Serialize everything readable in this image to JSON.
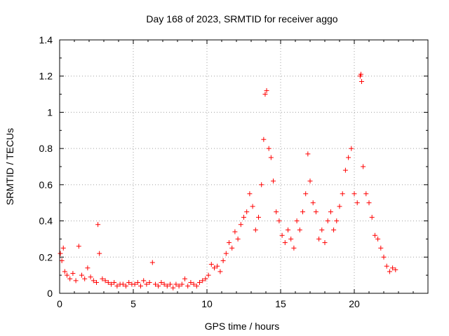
{
  "chart_data": {
    "type": "scatter",
    "title": "Day 168 of 2023, SRMTID for receiver aggo",
    "xlabel": "GPS time / hours",
    "ylabel": "SRMTID / TECUs",
    "xlim": [
      0,
      25
    ],
    "ylim": [
      0,
      1.4
    ],
    "xticks": [
      "0",
      "5",
      "10",
      "15",
      "20"
    ],
    "xtick_values": [
      0,
      5,
      10,
      15,
      20
    ],
    "yticks": [
      "0",
      "0.2",
      "0.4",
      "0.6",
      "0.8",
      "1",
      "1.2",
      "1.4"
    ],
    "ytick_values": [
      0,
      0.2,
      0.4,
      0.6,
      0.8,
      1.0,
      1.2,
      1.4
    ],
    "grid": true,
    "marker": "plus",
    "series": [
      {
        "name": "SRMTID",
        "color": "#ff0000",
        "x": [
          0.05,
          0.15,
          0.25,
          0.35,
          0.5,
          0.7,
          0.9,
          1.1,
          1.3,
          1.5,
          1.7,
          1.9,
          2.1,
          2.3,
          2.5,
          2.6,
          2.7,
          2.9,
          3.1,
          3.3,
          3.5,
          3.7,
          3.9,
          4.1,
          4.3,
          4.5,
          4.7,
          4.9,
          5.1,
          5.3,
          5.5,
          5.7,
          5.9,
          6.1,
          6.3,
          6.5,
          6.7,
          6.9,
          7.1,
          7.3,
          7.5,
          7.7,
          7.9,
          8.1,
          8.3,
          8.5,
          8.7,
          8.9,
          9.1,
          9.3,
          9.5,
          9.7,
          9.9,
          10.1,
          10.3,
          10.5,
          10.7,
          10.9,
          11.1,
          11.3,
          11.5,
          11.7,
          11.9,
          12.1,
          12.3,
          12.5,
          12.7,
          12.9,
          13.1,
          13.3,
          13.5,
          13.7,
          13.85,
          13.95,
          14.05,
          14.2,
          14.35,
          14.5,
          14.7,
          14.9,
          15.1,
          15.3,
          15.5,
          15.7,
          15.9,
          16.1,
          16.3,
          16.5,
          16.7,
          16.85,
          17.0,
          17.2,
          17.4,
          17.6,
          17.8,
          18.0,
          18.2,
          18.4,
          18.6,
          18.8,
          19.0,
          19.2,
          19.4,
          19.6,
          19.8,
          20.0,
          20.2,
          20.4,
          20.45,
          20.5,
          20.6,
          20.8,
          21.0,
          21.2,
          21.4,
          21.6,
          21.8,
          22.0,
          22.2,
          22.4,
          22.6,
          22.8
        ],
        "y": [
          0.22,
          0.18,
          0.25,
          0.12,
          0.1,
          0.08,
          0.11,
          0.07,
          0.26,
          0.1,
          0.08,
          0.14,
          0.09,
          0.07,
          0.06,
          0.38,
          0.22,
          0.08,
          0.07,
          0.06,
          0.05,
          0.06,
          0.04,
          0.05,
          0.05,
          0.04,
          0.06,
          0.05,
          0.05,
          0.06,
          0.04,
          0.07,
          0.05,
          0.06,
          0.17,
          0.05,
          0.04,
          0.06,
          0.05,
          0.04,
          0.05,
          0.03,
          0.05,
          0.04,
          0.05,
          0.08,
          0.04,
          0.06,
          0.05,
          0.04,
          0.06,
          0.07,
          0.08,
          0.1,
          0.16,
          0.14,
          0.15,
          0.12,
          0.18,
          0.22,
          0.28,
          0.25,
          0.34,
          0.3,
          0.38,
          0.42,
          0.45,
          0.55,
          0.48,
          0.35,
          0.42,
          0.6,
          0.85,
          1.1,
          1.12,
          0.8,
          0.75,
          0.62,
          0.45,
          0.4,
          0.32,
          0.28,
          0.35,
          0.3,
          0.25,
          0.4,
          0.35,
          0.45,
          0.55,
          0.77,
          0.62,
          0.5,
          0.45,
          0.3,
          0.35,
          0.28,
          0.4,
          0.45,
          0.35,
          0.4,
          0.48,
          0.55,
          0.68,
          0.75,
          0.8,
          0.55,
          0.5,
          1.2,
          1.21,
          1.17,
          0.7,
          0.55,
          0.5,
          0.42,
          0.32,
          0.3,
          0.25,
          0.2,
          0.15,
          0.12,
          0.14,
          0.13
        ]
      }
    ]
  }
}
